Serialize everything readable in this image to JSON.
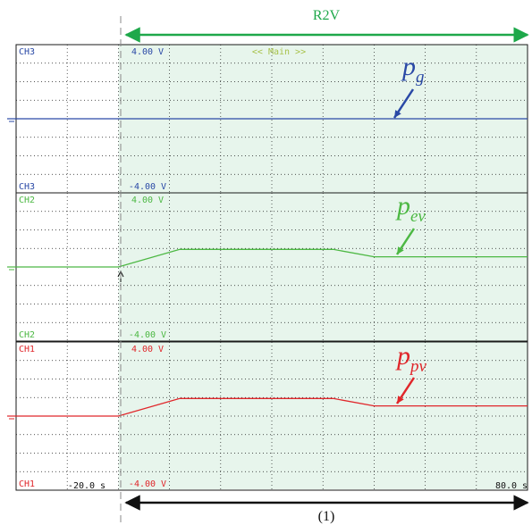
{
  "header": {
    "label": "R2V"
  },
  "footer": {
    "label": "(1)"
  },
  "main_label": "<< Main >>",
  "colors": {
    "ch3": "#2a49a6",
    "ch2": "#4cb843",
    "ch1": "#e0262a",
    "arrow_green": "#1ea84a",
    "grid": "#1a1a1a",
    "highlight": "#e7f5ec",
    "trigger_line": "#888888"
  },
  "chart_data": {
    "type": "line",
    "x_unit": "s",
    "xlim": [
      -20.0,
      80.0
    ],
    "x_ticks": [
      "-20.0 s",
      "80.0 s"
    ],
    "highlight_start": 0.0,
    "panels": [
      {
        "channel": "CH3",
        "top_label": "CH3",
        "top_value": "4.00 V",
        "bottom_label": "CH3",
        "bottom_value": "-4.00 V",
        "annotation": {
          "main": "p",
          "sub": "g"
        },
        "ylim": [
          -4.0,
          4.0
        ],
        "series": {
          "x": [
            -20.0,
            80.0
          ],
          "y": [
            0.0,
            0.0
          ]
        }
      },
      {
        "channel": "CH2",
        "top_label": "CH2",
        "top_value": "4.00 V",
        "bottom_label": "CH2",
        "bottom_value": "-4.00 V",
        "annotation": {
          "main": "p",
          "sub": "ev"
        },
        "ylim": [
          -4.0,
          4.0
        ],
        "series": {
          "x": [
            -20.0,
            0.0,
            12.0,
            42.0,
            50.0,
            80.0
          ],
          "y": [
            0.0,
            0.0,
            0.95,
            0.95,
            0.55,
            0.55
          ]
        }
      },
      {
        "channel": "CH1",
        "top_label": "CH1",
        "top_value": "4.00 V",
        "bottom_label": "CH1",
        "bottom_value": "-4.00 V",
        "annotation": {
          "main": "p",
          "sub": "pv"
        },
        "ylim": [
          -4.0,
          4.0
        ],
        "series": {
          "x": [
            -20.0,
            0.0,
            12.0,
            42.0,
            50.0,
            80.0
          ],
          "y": [
            0.0,
            0.0,
            0.95,
            0.95,
            0.55,
            0.55
          ]
        }
      }
    ]
  }
}
